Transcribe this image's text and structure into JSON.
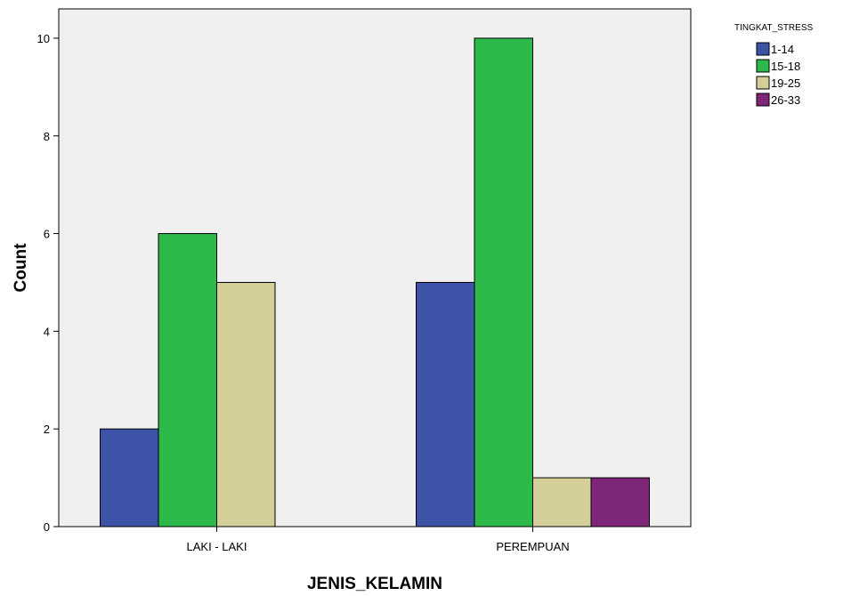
{
  "chart_data": {
    "type": "bar",
    "xlabel": "JENIS_KELAMIN",
    "ylabel": "Count",
    "categories": [
      "LAKI - LAKI",
      "PEREMPUAN"
    ],
    "ylim": [
      0,
      10.6
    ],
    "yticks": [
      0,
      2,
      4,
      6,
      8,
      10
    ],
    "grid": false,
    "legend_title": "TINGKAT_STRESS",
    "legend_position": "top-right",
    "series": [
      {
        "name": "1-14",
        "color": "#3d53a8",
        "values": [
          2,
          5
        ]
      },
      {
        "name": "15-18",
        "color": "#2db84a",
        "values": [
          6,
          10
        ]
      },
      {
        "name": "19-25",
        "color": "#d4cf98",
        "values": [
          5,
          1
        ]
      },
      {
        "name": "26-33",
        "color": "#7e2677",
        "values": [
          0,
          1
        ]
      }
    ]
  }
}
